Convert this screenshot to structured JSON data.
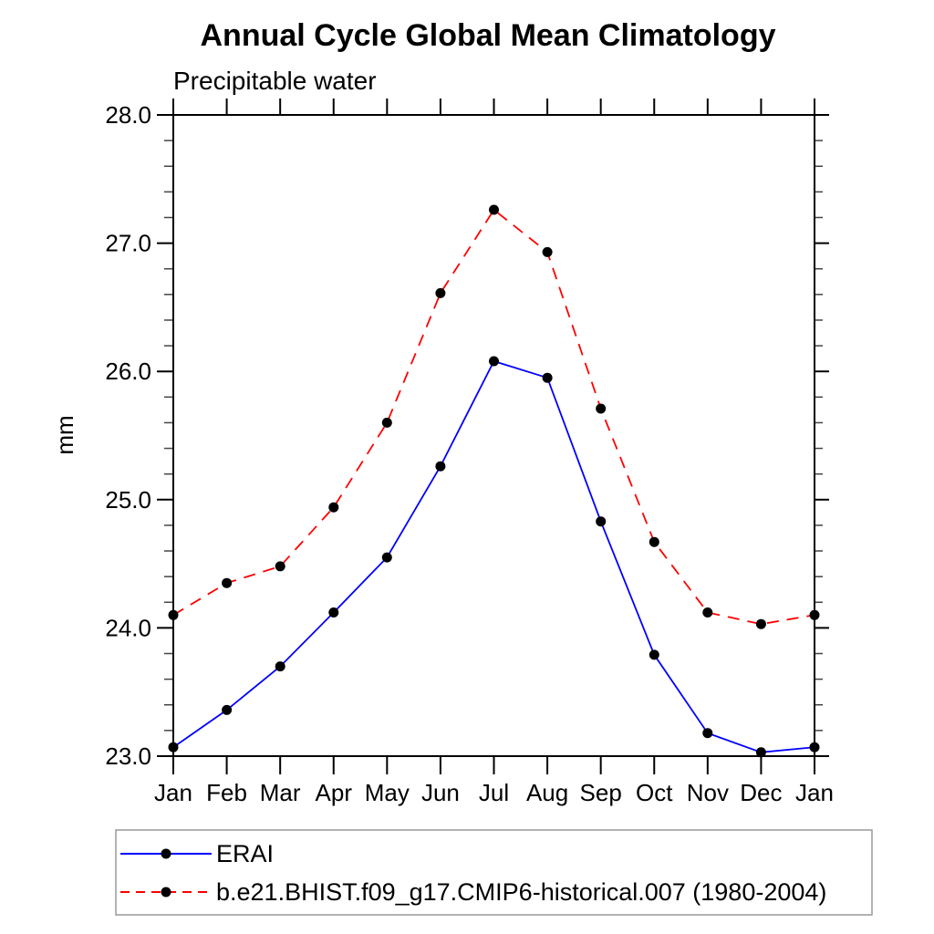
{
  "page": {
    "background": "#ffffff",
    "text_color": "#000000",
    "legend_border_color": "#999999"
  },
  "chart_data": {
    "type": "line",
    "title": "Annual Cycle Global Mean Climatology",
    "subtitle": "Precipitable water",
    "xlabel": "",
    "ylabel": "mm",
    "categories": [
      "Jan",
      "Feb",
      "Mar",
      "Apr",
      "May",
      "Jun",
      "Jul",
      "Aug",
      "Sep",
      "Oct",
      "Nov",
      "Dec",
      "Jan"
    ],
    "ylim": [
      23.0,
      28.0
    ],
    "ytick_step": 1.0,
    "yminor_step": 0.2,
    "ytick_labels": [
      "23.0",
      "24.0",
      "25.0",
      "26.0",
      "27.0",
      "28.0"
    ],
    "grid": false,
    "legend_position": "bottom box",
    "marker": "filled-circle",
    "marker_color": "#000000",
    "series": [
      {
        "name": "ERAI",
        "line_color": "#0000ff",
        "line_style": "solid",
        "values": [
          23.07,
          23.36,
          23.7,
          24.12,
          24.55,
          25.26,
          26.08,
          25.95,
          24.83,
          23.79,
          23.18,
          23.03,
          23.07
        ]
      },
      {
        "name": "b.e21.BHIST.f09_g17.CMIP6-historical.007 (1980-2004)",
        "line_color": "#ff0000",
        "line_style": "dashed",
        "values": [
          24.1,
          24.35,
          24.48,
          24.94,
          25.6,
          26.61,
          27.26,
          26.93,
          25.71,
          24.67,
          24.12,
          24.03,
          24.1
        ]
      }
    ]
  }
}
